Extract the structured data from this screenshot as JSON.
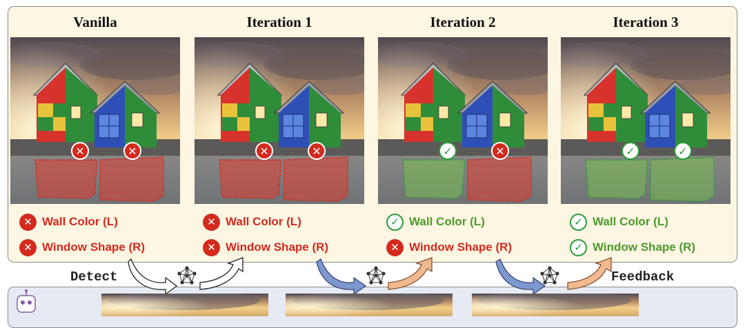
{
  "columns": [
    {
      "title": "Vanilla",
      "wall": "Wall Color (L)",
      "window": "Window Shape (R)",
      "wall_ok": false,
      "window_ok": false
    },
    {
      "title": "Iteration 1",
      "wall": "Wall Color (L)",
      "window": "Window Shape (R)",
      "wall_ok": false,
      "window_ok": false
    },
    {
      "title": "Iteration 2",
      "wall": "Wall Color (L)",
      "window": "Window Shape (R)",
      "wall_ok": true,
      "window_ok": false
    },
    {
      "title": "Iteration 3",
      "wall": "Wall Color (L)",
      "window": "Window Shape (R)",
      "wall_ok": true,
      "window_ok": true
    }
  ],
  "flow": {
    "detect_label": "Detect",
    "feedback_label": "Feedback"
  },
  "icons": {
    "ok": "check-icon",
    "fail": "cross-icon",
    "network": "network-icon",
    "robot": "robot-head-icon"
  },
  "colors": {
    "ok": "#4e9a2e",
    "fail": "#d42a1e",
    "panel": "#fcf6e2",
    "bottom_panel": "#e6eaf2",
    "arrow_blue": "#7e97cf",
    "arrow_peach": "#f2b88f"
  }
}
